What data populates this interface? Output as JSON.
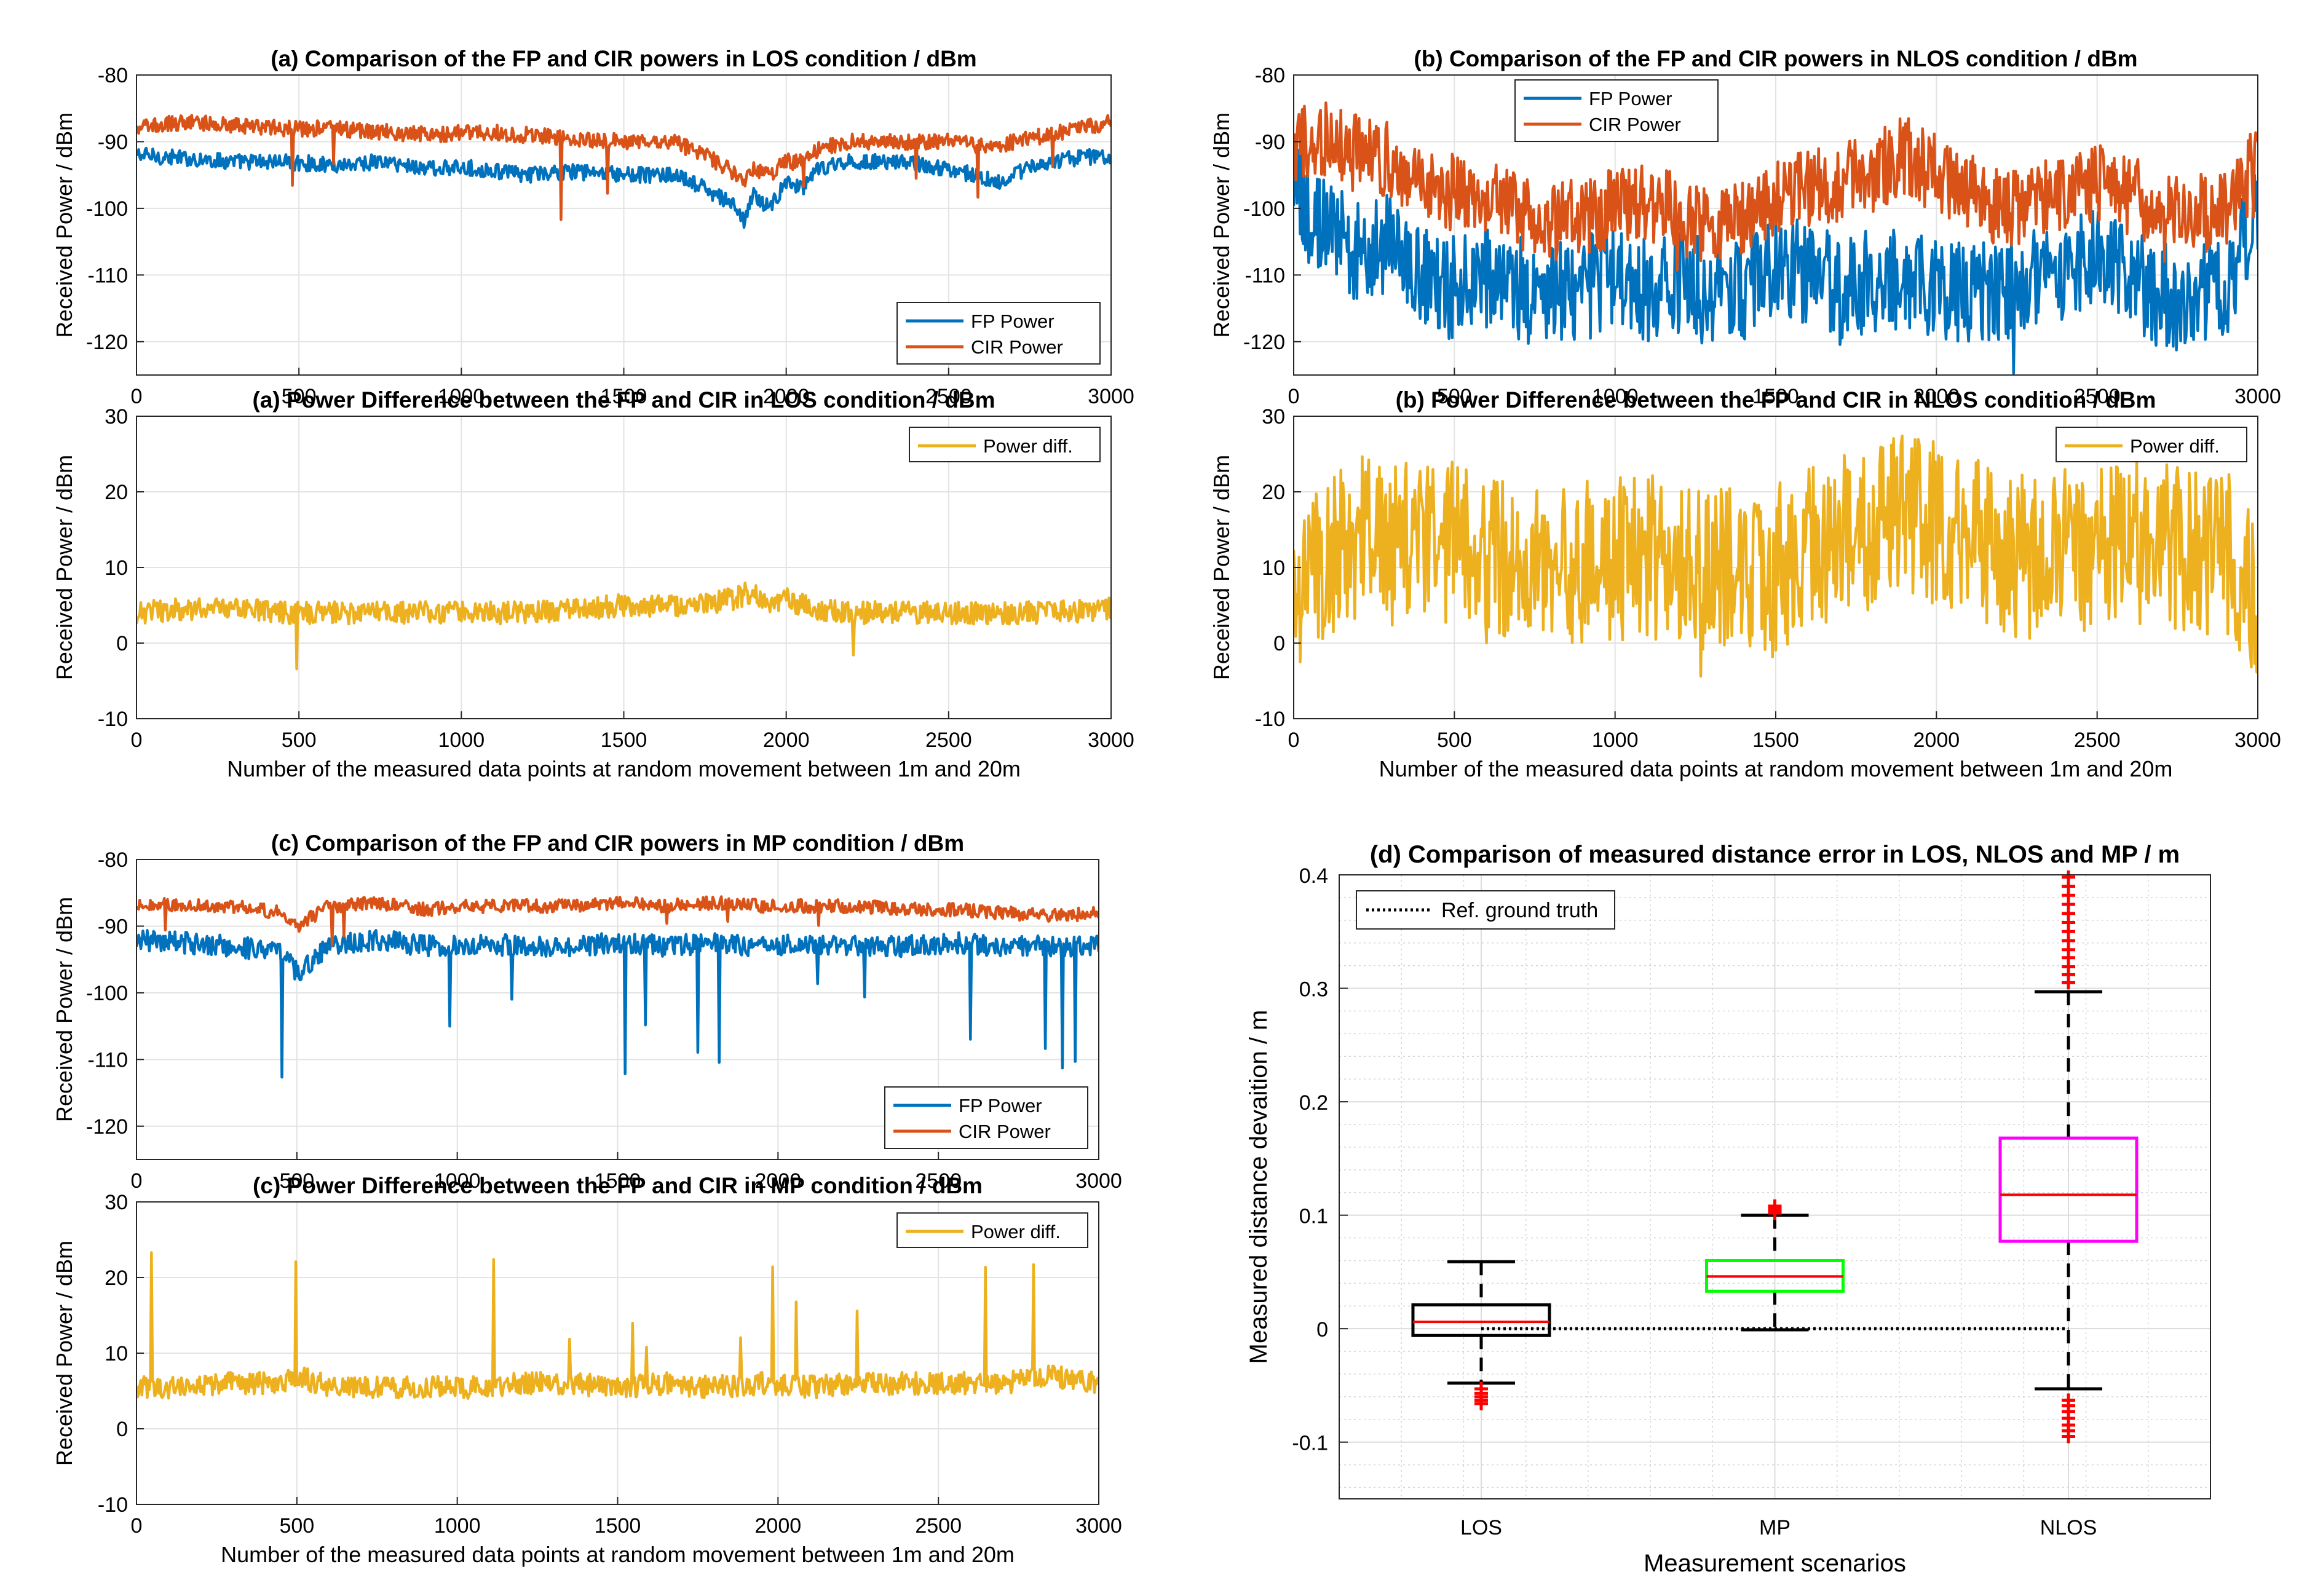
{
  "chart_data": [
    {
      "id": "a_power",
      "type": "line",
      "title": "(a) Comparison of the FP and CIR powers in LOS condition / dBm",
      "xlabel": "",
      "ylabel": "Received Power / dBm",
      "xlim": [
        0,
        3000
      ],
      "ylim": [
        -125,
        -80
      ],
      "xticks": [
        "0",
        "500",
        "1000",
        "1500",
        "2000",
        "2500",
        "3000"
      ],
      "yticks": [
        "-120",
        "-110",
        "-100",
        "-90",
        "-80"
      ],
      "legend": "bottom-right",
      "series": [
        {
          "name": "FP Power",
          "color": "#0072BD",
          "x": [
            0,
            150,
            300,
            450,
            600,
            750,
            900,
            1050,
            1200,
            1350,
            1500,
            1650,
            1750,
            1850,
            1870,
            1900,
            1950,
            2000,
            2050,
            2100,
            2200,
            2350,
            2500,
            2650,
            2700,
            2800,
            2900,
            3000
          ],
          "y": [
            -92,
            -92.5,
            -93,
            -93,
            -93.5,
            -93,
            -94,
            -94,
            -95,
            -94.5,
            -95,
            -95,
            -97,
            -100,
            -102,
            -98,
            -100,
            -96,
            -97,
            -94,
            -93,
            -93,
            -94,
            -96,
            -95,
            -93,
            -92.5,
            -92
          ]
        },
        {
          "name": "CIR Power",
          "color": "#D95319",
          "x": [
            0,
            150,
            300,
            450,
            600,
            750,
            900,
            1050,
            1200,
            1350,
            1500,
            1650,
            1750,
            1850,
            1870,
            1900,
            1950,
            2000,
            2050,
            2100,
            2200,
            2350,
            2500,
            2650,
            2700,
            2800,
            2900,
            3000
          ],
          "y": [
            -88,
            -87,
            -87.5,
            -88,
            -88,
            -88.5,
            -89,
            -88.5,
            -89,
            -89.5,
            -90,
            -90,
            -92,
            -95,
            -96,
            -94,
            -95,
            -93,
            -93,
            -91,
            -90,
            -90,
            -90,
            -91,
            -90,
            -89,
            -88,
            -87
          ]
        }
      ]
    },
    {
      "id": "a_diff",
      "type": "line",
      "title": "(a) Power Difference between the FP and CIR in LOS condition / dBm",
      "xlabel": "Number of the measured data points at random movement between 1m and 20m",
      "ylabel": "Received Power / dBm",
      "xlim": [
        0,
        3000
      ],
      "ylim": [
        -10,
        30
      ],
      "xticks": [
        "0",
        "500",
        "1000",
        "1500",
        "2000",
        "2500",
        "3000"
      ],
      "yticks": [
        "-10",
        "0",
        "10",
        "20",
        "30"
      ],
      "legend": "top-right",
      "series": [
        {
          "name": "Power diff.",
          "color": "#EDB120",
          "x": [
            0,
            150,
            300,
            450,
            600,
            750,
            900,
            1050,
            1200,
            1350,
            1500,
            1650,
            1750,
            1850,
            1900,
            1950,
            2000,
            2050,
            2100,
            2200,
            2350,
            2500,
            2650,
            2800,
            3000
          ],
          "y": [
            4,
            4.5,
            4.5,
            4,
            4,
            4,
            4,
            4,
            4,
            4.5,
            5,
            5,
            5,
            6,
            7,
            5,
            6,
            5,
            4.5,
            4,
            4,
            4,
            4,
            4,
            4.5
          ]
        }
      ]
    },
    {
      "id": "b_power",
      "type": "line",
      "title": "(b) Comparison of the FP and CIR powers in NLOS condition / dBm",
      "xlabel": "",
      "ylabel": "Received Power / dBm",
      "xlim": [
        0,
        3000
      ],
      "ylim": [
        -125,
        -80
      ],
      "xticks": [
        "0",
        "500",
        "1000",
        "1500",
        "2000",
        "2500",
        "3000"
      ],
      "yticks": [
        "-120",
        "-110",
        "-100",
        "-90",
        "-80"
      ],
      "legend": "top-left",
      "series": [
        {
          "name": "FP Power",
          "color": "#0072BD",
          "x": [
            0,
            100,
            200,
            300,
            400,
            500,
            600,
            700,
            800,
            900,
            1000,
            1100,
            1200,
            1300,
            1400,
            1500,
            1600,
            1700,
            1800,
            1900,
            2000,
            2100,
            2200,
            2300,
            2400,
            2500,
            2600,
            2700,
            2800,
            2900,
            3000
          ],
          "y": [
            -98,
            -103,
            -106,
            -105,
            -110,
            -112,
            -111,
            -112,
            -113,
            -112,
            -111,
            -112,
            -111,
            -113,
            -112,
            -108,
            -110,
            -112,
            -111,
            -110,
            -112,
            -113,
            -112,
            -110,
            -109,
            -108,
            -111,
            -113,
            -114,
            -112,
            -100
          ]
        },
        {
          "name": "CIR Power",
          "color": "#D95319",
          "x": [
            0,
            100,
            200,
            300,
            400,
            500,
            600,
            700,
            800,
            900,
            1000,
            1100,
            1200,
            1300,
            1400,
            1500,
            1600,
            1700,
            1800,
            1900,
            2000,
            2100,
            2200,
            2300,
            2400,
            2500,
            2600,
            2700,
            2800,
            2900,
            3000
          ],
          "y": [
            -91,
            -90,
            -92,
            -93,
            -95,
            -98,
            -99,
            -100,
            -102,
            -101,
            -100,
            -99,
            -101,
            -103,
            -102,
            -98,
            -97,
            -96,
            -95,
            -92,
            -95,
            -97,
            -100,
            -99,
            -97,
            -96,
            -98,
            -100,
            -101,
            -100,
            -93
          ]
        }
      ]
    },
    {
      "id": "b_diff",
      "type": "line",
      "title": "(b) Power Difference between the FP and CIR in NLOS condition / dBm",
      "xlabel": "Number of the measured data points at random movement between 1m and 20m",
      "ylabel": "Received Power / dBm",
      "xlim": [
        0,
        3000
      ],
      "ylim": [
        -10,
        30
      ],
      "xticks": [
        "0",
        "500",
        "1000",
        "1500",
        "2000",
        "2500",
        "3000"
      ],
      "yticks": [
        "-10",
        "0",
        "10",
        "20",
        "30"
      ],
      "legend": "top-right",
      "series": [
        {
          "name": "Power diff.",
          "color": "#EDB120",
          "x": [
            0,
            100,
            200,
            300,
            400,
            500,
            600,
            700,
            800,
            900,
            1000,
            1100,
            1200,
            1300,
            1400,
            1500,
            1600,
            1700,
            1800,
            1900,
            2000,
            2100,
            2200,
            2300,
            2400,
            2500,
            2600,
            2700,
            2800,
            2900,
            3000
          ],
          "y": [
            6,
            12,
            14,
            12,
            14,
            13,
            11,
            12,
            11,
            11,
            11,
            12,
            10,
            10,
            10,
            10,
            12,
            15,
            15,
            18,
            16,
            15,
            12,
            11,
            12,
            12,
            13,
            13,
            12,
            12,
            6
          ]
        }
      ]
    },
    {
      "id": "c_power",
      "type": "line",
      "title": "(c) Comparison of the FP and CIR powers in MP condition / dBm",
      "xlabel": "",
      "ylabel": "Received Power / dBm",
      "xlim": [
        0,
        3000
      ],
      "ylim": [
        -125,
        -80
      ],
      "xticks": [
        "0",
        "500",
        "1000",
        "1500",
        "2000",
        "2500",
        "3000"
      ],
      "yticks": [
        "-120",
        "-110",
        "-100",
        "-90",
        "-80"
      ],
      "legend": "bottom-right",
      "series": [
        {
          "name": "FP Power",
          "color": "#0072BD",
          "x": [
            0,
            150,
            300,
            450,
            500,
            600,
            750,
            900,
            1050,
            1200,
            1350,
            1500,
            1650,
            1800,
            1950,
            2100,
            2250,
            2400,
            2550,
            2700,
            2850,
            3000
          ],
          "y": [
            -92,
            -92.5,
            -93,
            -94,
            -97,
            -93,
            -92,
            -93,
            -92.5,
            -93,
            -93,
            -92.5,
            -93,
            -92.5,
            -93,
            -92.5,
            -93,
            -93,
            -92.5,
            -93,
            -93,
            -93
          ]
        },
        {
          "name": "CIR Power",
          "color": "#D95319",
          "x": [
            0,
            150,
            300,
            450,
            500,
            600,
            750,
            900,
            1050,
            1200,
            1350,
            1500,
            1650,
            1800,
            1950,
            2100,
            2250,
            2400,
            2550,
            2700,
            2850,
            3000
          ],
          "y": [
            -86.5,
            -87,
            -87,
            -88,
            -90,
            -87,
            -86.5,
            -87.5,
            -87,
            -87,
            -87,
            -86.5,
            -87,
            -86.5,
            -87,
            -87,
            -87,
            -87.5,
            -87.5,
            -88,
            -88.5,
            -88
          ]
        }
      ]
    },
    {
      "id": "c_diff",
      "type": "line",
      "title": "(c) Power Difference between the FP and CIR in MP condition / dBm",
      "xlabel": "Number of the measured data points at random movement between 1m and 20m",
      "ylabel": "Received Power / dBm",
      "xlim": [
        0,
        3000
      ],
      "ylim": [
        -10,
        30
      ],
      "xticks": [
        "0",
        "500",
        "1000",
        "1500",
        "2000",
        "2500",
        "3000"
      ],
      "yticks": [
        "-10",
        "0",
        "10",
        "20",
        "30"
      ],
      "legend": "top-right",
      "series": [
        {
          "name": "Power diff.",
          "color": "#EDB120",
          "x": [
            0,
            150,
            300,
            450,
            500,
            600,
            750,
            900,
            1050,
            1200,
            1350,
            1500,
            1650,
            1800,
            1950,
            2100,
            2250,
            2400,
            2550,
            2700,
            2850,
            3000
          ],
          "y": [
            5.5,
            5.5,
            6,
            6,
            7,
            5.5,
            5.5,
            5.5,
            5.5,
            6,
            6,
            5.5,
            6,
            5.5,
            6,
            5.5,
            6,
            6,
            6,
            6,
            7,
            6
          ]
        }
      ]
    },
    {
      "id": "d_box",
      "type": "box",
      "title": "(d) Comparison of measured distance error in LOS, NLOS and MP / m",
      "xlabel": "Measurement scenarios",
      "ylabel": "Measured distance devaition / m",
      "ylim": [
        -0.15,
        0.4
      ],
      "yticks": [
        "-0.1",
        "0",
        "0.1",
        "0.2",
        "0.3",
        "0.4"
      ],
      "categories": [
        "LOS",
        "MP",
        "NLOS"
      ],
      "legend": "top-left",
      "reference": {
        "name": "Ref. ground truth",
        "value": 0
      },
      "boxes": [
        {
          "category": "LOS",
          "color": "#000000",
          "whisker_low": -0.048,
          "q1": -0.006,
          "median": 0.006,
          "q3": 0.021,
          "whisker_high": 0.059,
          "outliers": [
            -0.053,
            -0.057,
            -0.06,
            -0.063,
            -0.066
          ]
        },
        {
          "category": "MP",
          "color": "#00FF00",
          "whisker_low": -0.001,
          "q1": 0.033,
          "median": 0.046,
          "q3": 0.06,
          "whisker_high": 0.1,
          "outliers": [
            0.102,
            0.104,
            0.106,
            0.108
          ]
        },
        {
          "category": "NLOS",
          "color": "#FF00FF",
          "whisker_low": -0.053,
          "q1": 0.077,
          "median": 0.118,
          "q3": 0.168,
          "whisker_high": 0.297,
          "outliers": [
            -0.063,
            -0.068,
            -0.073,
            -0.079,
            -0.085,
            -0.09,
            -0.095,
            0.305,
            0.312,
            0.319,
            0.327,
            0.334,
            0.342,
            0.35,
            0.358,
            0.366,
            0.374,
            0.382,
            0.39,
            0.398
          ]
        }
      ]
    }
  ]
}
